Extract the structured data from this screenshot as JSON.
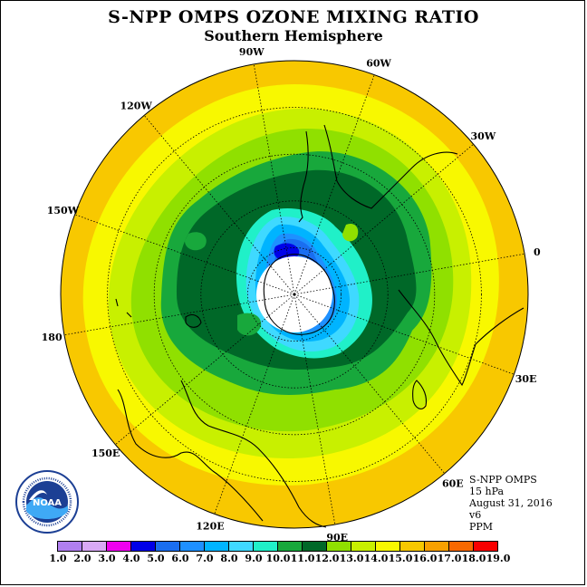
{
  "title": "S-NPP OMPS OZONE MIXING RATIO",
  "subtitle": "Southern Hemisphere",
  "info": {
    "product": "S-NPP OMPS",
    "level": "15 hPa",
    "date": "August 31, 2016",
    "version": "v6",
    "units": "PPM"
  },
  "logo_text": "NOAA",
  "longitude_labels": [
    "90W",
    "60W",
    "30W",
    "0",
    "30E",
    "60E",
    "90E",
    "120E",
    "150E",
    "180",
    "150W",
    "120W"
  ],
  "colorbar": {
    "ticks": [
      "1.0",
      "2.0",
      "3.0",
      "4.0",
      "5.0",
      "6.0",
      "7.0",
      "8.0",
      "9.0",
      "10.0",
      "11.0",
      "12.0",
      "13.0",
      "14.0",
      "15.0",
      "16.0",
      "17.0",
      "18.0",
      "19.0"
    ],
    "colors": [
      "#b07ff0",
      "#d9a9f5",
      "#f000f0",
      "#0000e8",
      "#1a6ef0",
      "#1e90ff",
      "#00b4ff",
      "#3fd9ff",
      "#20f0c8",
      "#18a83c",
      "#006828",
      "#90e000",
      "#c8f000",
      "#f8f800",
      "#f8c800",
      "#f8a000",
      "#f86800",
      "#f80000",
      "#8b5a3c"
    ]
  },
  "colors": {
    "outer_ring": "#f8c800",
    "no_data_center": "#ffffff"
  }
}
